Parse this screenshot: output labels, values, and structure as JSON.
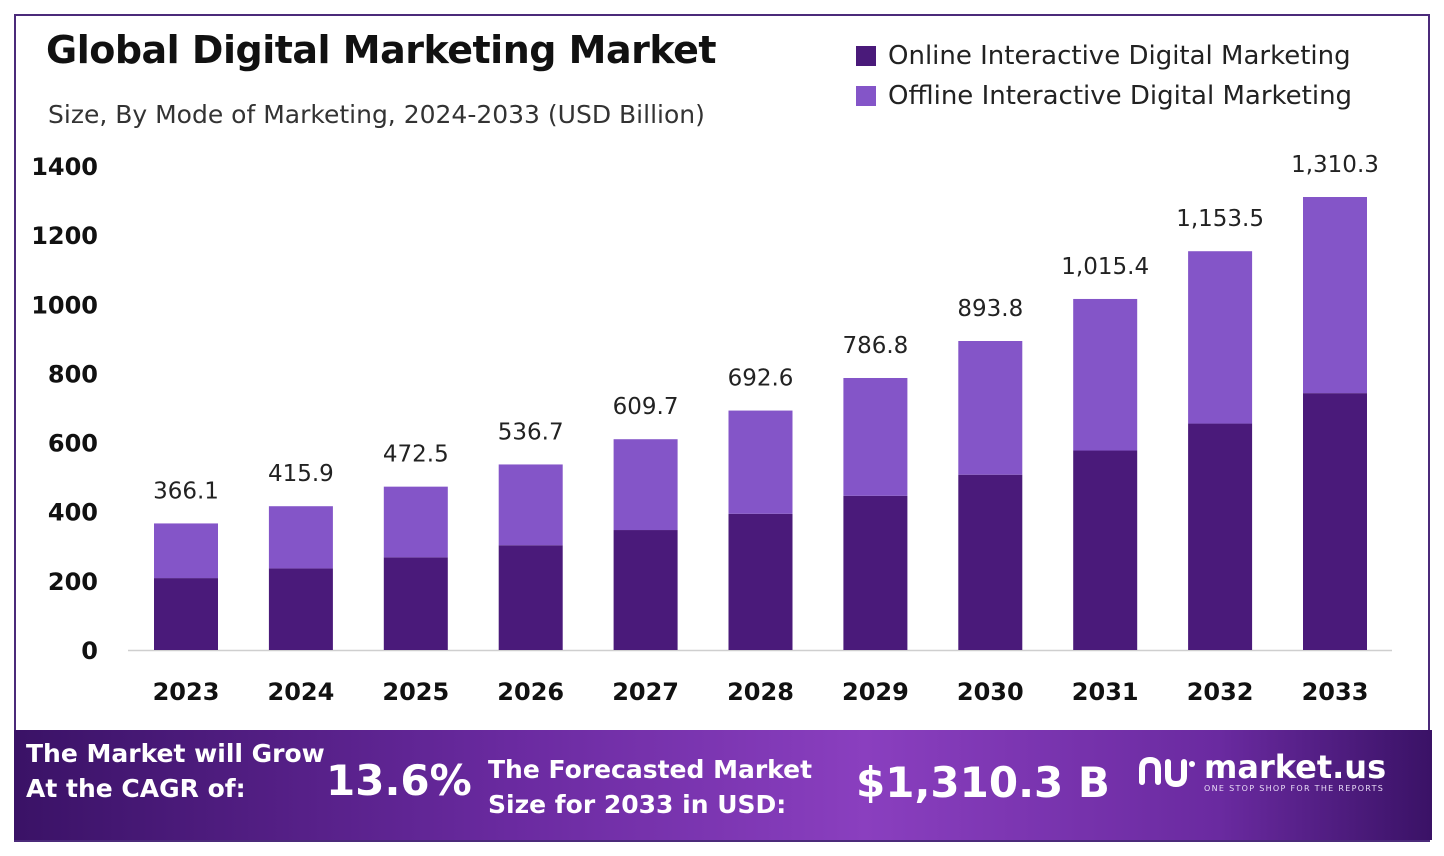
{
  "header": {
    "title": "Global Digital Marketing Market",
    "subtitle": "Size, By Mode of Marketing, 2024-2033 (USD Billion)"
  },
  "chart_data": {
    "type": "bar",
    "stacked": true,
    "categories": [
      "2023",
      "2024",
      "2025",
      "2026",
      "2027",
      "2028",
      "2029",
      "2030",
      "2031",
      "2032",
      "2033"
    ],
    "series": [
      {
        "name": "Online Interactive Digital Marketing",
        "color": "#4a1a7a",
        "values": [
          208,
          236,
          268,
          303,
          347,
          394,
          446,
          507,
          577,
          655,
          743
        ]
      },
      {
        "name": "Offline Interactive Digital Marketing",
        "color": "#8455c8",
        "values": [
          158.1,
          179.9,
          204.5,
          233.7,
          262.7,
          298.6,
          340.8,
          386.8,
          438.4,
          498.5,
          567.3
        ]
      }
    ],
    "totals": [
      366.1,
      415.9,
      472.5,
      536.7,
      609.7,
      692.6,
      786.8,
      893.8,
      1015.4,
      1153.5,
      1310.3
    ],
    "total_labels": [
      "366.1",
      "415.9",
      "472.5",
      "536.7",
      "609.7",
      "692.6",
      "786.8",
      "893.8",
      "1,015.4",
      "1,153.5",
      "1,310.3"
    ],
    "yticks": [
      "0",
      "200",
      "400",
      "600",
      "800",
      "1000",
      "1200",
      "1400"
    ],
    "ylim": [
      0,
      1400
    ],
    "grid": false,
    "legend_position": "top-right",
    "title": "Global Digital Marketing Market",
    "xlabel": "",
    "ylabel": ""
  },
  "banner": {
    "cagr_label": "The Market will Grow At the CAGR of:",
    "cagr_value": "13.6%",
    "forecast_label": "The Forecasted Market Size for 2033 in USD:",
    "forecast_value": "$1,310.3 B",
    "logo_name": "market.us",
    "logo_tagline": "ONE STOP SHOP FOR THE REPORTS",
    "logo_icon": "market-us-logo-icon"
  }
}
